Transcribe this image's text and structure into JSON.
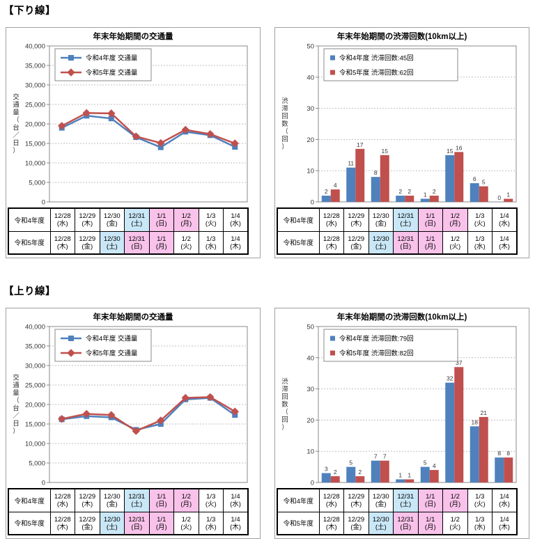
{
  "sections": [
    {
      "label": "【下り線】"
    },
    {
      "label": "【上り線】"
    }
  ],
  "colors": {
    "r4_series": "#4F81BD",
    "r5_series": "#C0504D",
    "saturday_bg": "#C9E7F6",
    "holiday_bg": "#F9C2EA",
    "gridline": "#BFBFBF",
    "plot_border": "#898989",
    "tick_text": "#333333"
  },
  "date_table": {
    "rows": [
      {
        "header": "令和4年度",
        "cells": [
          {
            "date": "12/28",
            "dow": "(水)",
            "hl": "none"
          },
          {
            "date": "12/29",
            "dow": "(木)",
            "hl": "none"
          },
          {
            "date": "12/30",
            "dow": "(金)",
            "hl": "none"
          },
          {
            "date": "12/31",
            "dow": "(土)",
            "hl": "sat"
          },
          {
            "date": "1/1",
            "dow": "(日)",
            "hl": "hol"
          },
          {
            "date": "1/2",
            "dow": "(月)",
            "hl": "hol"
          },
          {
            "date": "1/3",
            "dow": "(火)",
            "hl": "none"
          },
          {
            "date": "1/4",
            "dow": "(水)",
            "hl": "none"
          }
        ]
      },
      {
        "header": "令和5年度",
        "cells": [
          {
            "date": "12/28",
            "dow": "(木)",
            "hl": "none"
          },
          {
            "date": "12/29",
            "dow": "(金)",
            "hl": "none"
          },
          {
            "date": "12/30",
            "dow": "(土)",
            "hl": "sat"
          },
          {
            "date": "12/31",
            "dow": "(日)",
            "hl": "hol"
          },
          {
            "date": "1/1",
            "dow": "(月)",
            "hl": "hol"
          },
          {
            "date": "1/2",
            "dow": "(火)",
            "hl": "none"
          },
          {
            "date": "1/3",
            "dow": "(水)",
            "hl": "none"
          },
          {
            "date": "1/4",
            "dow": "(木)",
            "hl": "none"
          }
        ]
      }
    ]
  },
  "chart_data": [
    {
      "id": "down-traffic-volume",
      "type": "line",
      "title": "年末年始期間の交通量",
      "ylabel": "交通量（台／日）",
      "ylim": [
        0,
        40000
      ],
      "ytick_values": [
        0,
        5000,
        10000,
        15000,
        20000,
        25000,
        30000,
        35000,
        40000
      ],
      "ytick_labels": [
        "0",
        "5,000",
        "10,000",
        "15,000",
        "20,000",
        "25,000",
        "30,000",
        "35,000",
        "40,000"
      ],
      "categories": [
        "12/28",
        "12/29",
        "12/30",
        "12/31",
        "1/1",
        "1/2",
        "1/3",
        "1/4"
      ],
      "grid": "dashed",
      "legend_position": "top-left",
      "series": [
        {
          "name": "令和4年度 交通量",
          "color": "#4F81BD",
          "marker": "square",
          "values": [
            19000,
            22100,
            21400,
            16600,
            14000,
            18000,
            17100,
            14100
          ]
        },
        {
          "name": "令和5年度 交通量",
          "color": "#C0504D",
          "marker": "diamond",
          "values": [
            19500,
            22800,
            22700,
            16800,
            15100,
            18500,
            17400,
            15000
          ]
        }
      ]
    },
    {
      "id": "down-congestion-count",
      "type": "bar",
      "title": "年末年始期間の渋滞回数(10km以上)",
      "ylabel": "渋滞回数（回）",
      "ylim": [
        0,
        50
      ],
      "ytick_values": [
        0,
        10,
        20,
        30,
        40,
        50
      ],
      "ytick_labels": [
        "0",
        "10",
        "20",
        "30",
        "40",
        "50"
      ],
      "categories": [
        "12/28",
        "12/29",
        "12/30",
        "12/31",
        "1/1",
        "1/2",
        "1/3",
        "1/4"
      ],
      "grid": "dashed",
      "legend_position": "top-left",
      "value_labels": true,
      "series": [
        {
          "name": "令和4年度 渋滞回数:45回",
          "color": "#4F81BD",
          "values": [
            2,
            11,
            8,
            2,
            1,
            15,
            6,
            0
          ]
        },
        {
          "name": "令和5年度 渋滞回数:62回",
          "color": "#C0504D",
          "values": [
            4,
            17,
            15,
            2,
            2,
            16,
            5,
            1
          ]
        }
      ]
    },
    {
      "id": "up-traffic-volume",
      "type": "line",
      "title": "年末年始期間の交通量",
      "ylabel": "交通量（台／日）",
      "ylim": [
        0,
        40000
      ],
      "ytick_values": [
        0,
        5000,
        10000,
        15000,
        20000,
        25000,
        30000,
        35000,
        40000
      ],
      "ytick_labels": [
        "0",
        "5,000",
        "10,000",
        "15,000",
        "20,000",
        "25,000",
        "30,000",
        "35,000",
        "40,000"
      ],
      "categories": [
        "12/28",
        "12/29",
        "12/30",
        "12/31",
        "1/1",
        "1/2",
        "1/3",
        "1/4"
      ],
      "grid": "dashed",
      "legend_position": "top-left",
      "series": [
        {
          "name": "令和4年度 交通量",
          "color": "#4F81BD",
          "marker": "square",
          "values": [
            16200,
            17000,
            16700,
            13500,
            15000,
            21300,
            21700,
            17300
          ]
        },
        {
          "name": "令和5年度 交通量",
          "color": "#C0504D",
          "marker": "diamond",
          "values": [
            16300,
            17600,
            17300,
            13200,
            15900,
            21700,
            21900,
            18200
          ]
        }
      ]
    },
    {
      "id": "up-congestion-count",
      "type": "bar",
      "title": "年末年始期間の渋滞回数(10km以上)",
      "ylabel": "渋滞回数（回）",
      "ylim": [
        0,
        50
      ],
      "ytick_values": [
        0,
        10,
        20,
        30,
        40,
        50
      ],
      "ytick_labels": [
        "0",
        "10",
        "20",
        "30",
        "40",
        "50"
      ],
      "categories": [
        "12/28",
        "12/29",
        "12/30",
        "12/31",
        "1/1",
        "1/2",
        "1/3",
        "1/4"
      ],
      "grid": "dashed",
      "legend_position": "top-left",
      "value_labels": true,
      "series": [
        {
          "name": "令和4年度 渋滞回数:79回",
          "color": "#4F81BD",
          "values": [
            3,
            5,
            7,
            1,
            5,
            32,
            18,
            8
          ]
        },
        {
          "name": "令和5年度 渋滞回数:82回",
          "color": "#C0504D",
          "values": [
            2,
            2,
            7,
            1,
            4,
            37,
            21,
            8
          ]
        }
      ]
    }
  ]
}
